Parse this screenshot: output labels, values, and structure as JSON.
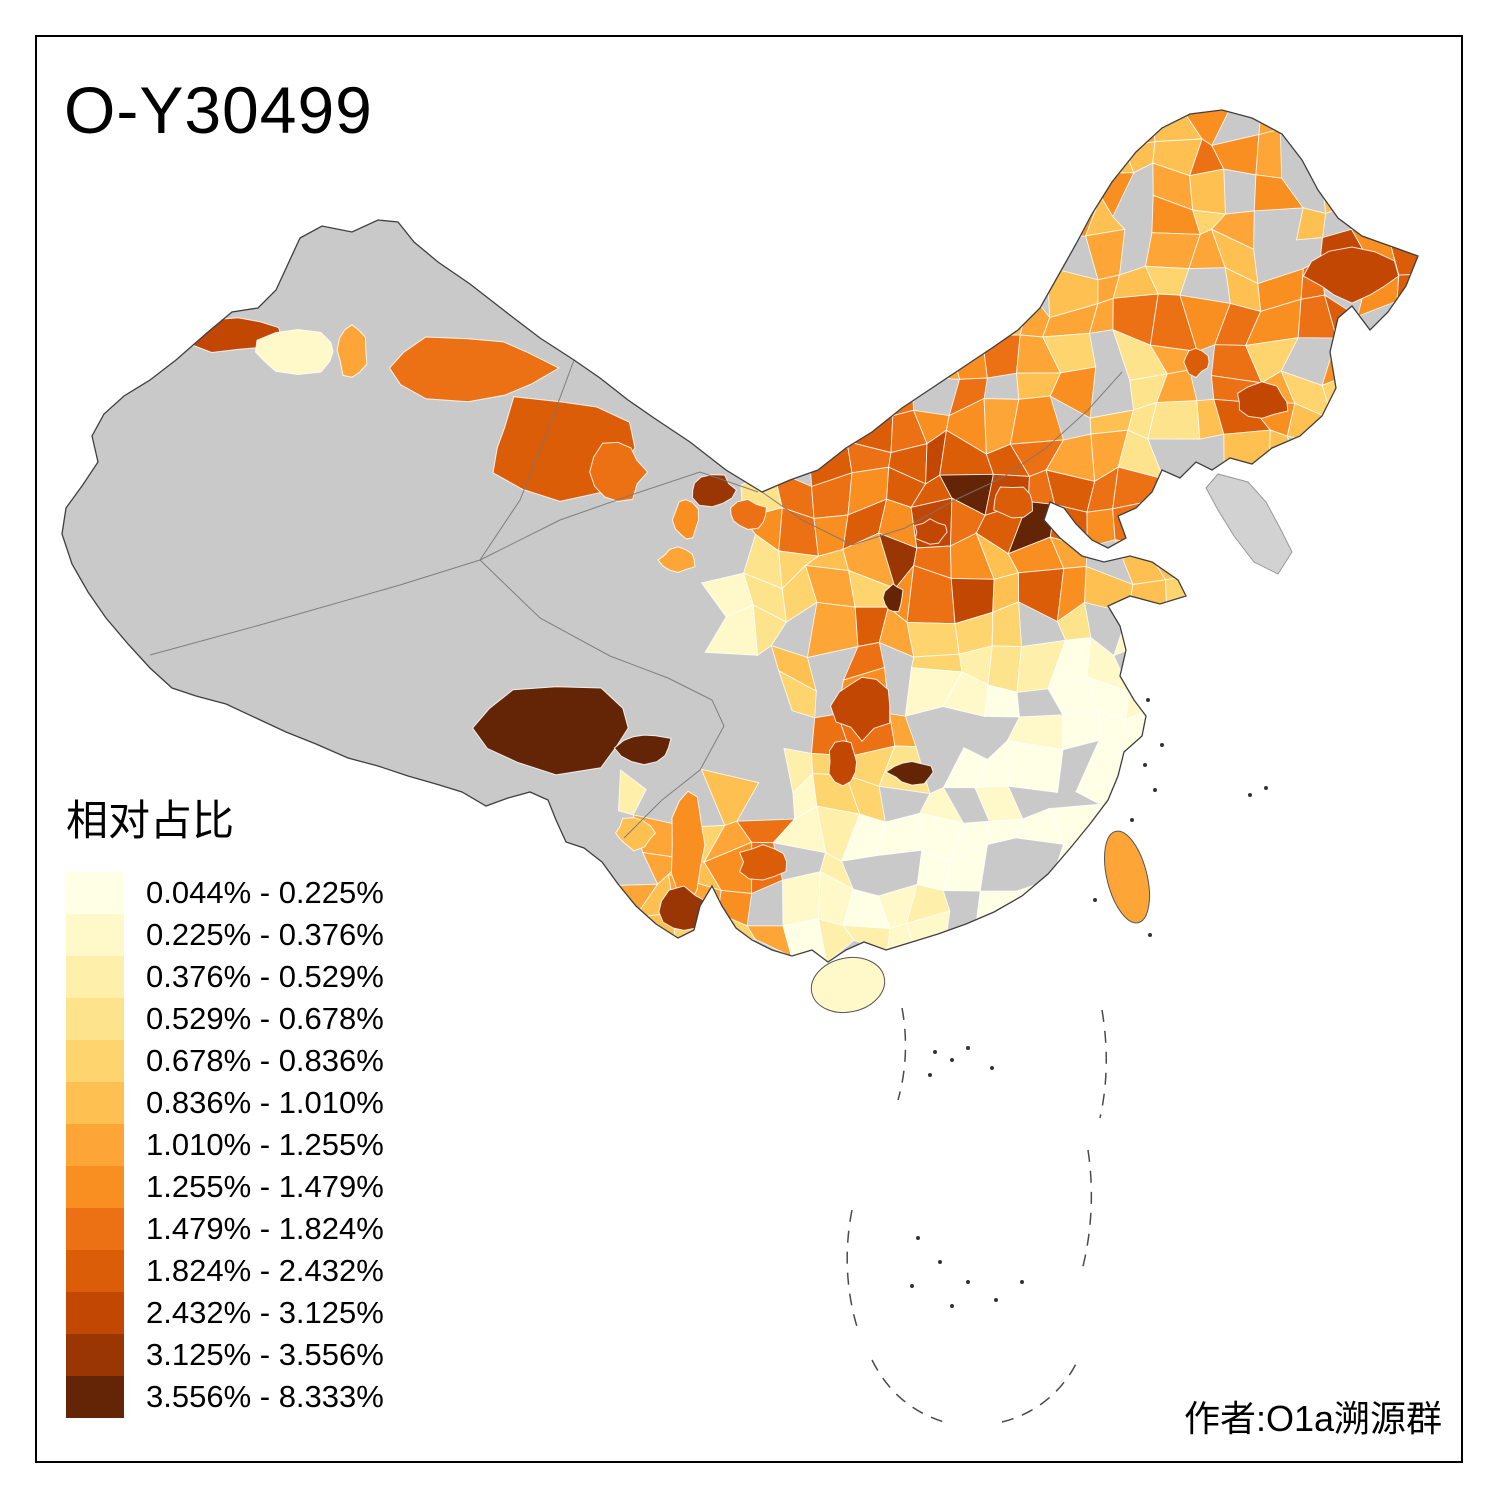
{
  "title": "O-Y30499",
  "attribution": "作者:O1a溯源群",
  "legend": {
    "title": "相对占比",
    "items": [
      {
        "label": "0.044% - 0.225%",
        "color": "#FFFFE5"
      },
      {
        "label": "0.225% - 0.376%",
        "color": "#FFF8C8"
      },
      {
        "label": "0.376% - 0.529%",
        "color": "#FEF0AA"
      },
      {
        "label": "0.529% - 0.678%",
        "color": "#FEE38D"
      },
      {
        "label": "0.678% - 0.836%",
        "color": "#FED46F"
      },
      {
        "label": "0.836% - 1.010%",
        "color": "#FEC051"
      },
      {
        "label": "1.010% - 1.255%",
        "color": "#FDA637"
      },
      {
        "label": "1.255% - 1.479%",
        "color": "#F98E21"
      },
      {
        "label": "1.479% - 1.824%",
        "color": "#EC7014"
      },
      {
        "label": "1.824% - 2.432%",
        "color": "#DC5D08"
      },
      {
        "label": "2.432% - 3.125%",
        "color": "#C24702"
      },
      {
        "label": "3.125% - 3.556%",
        "color": "#9A3504"
      },
      {
        "label": "3.556% - 8.333%",
        "color": "#642506"
      }
    ]
  },
  "map": {
    "no_data_fill": "#C9C9C9",
    "boundary_color": "#3F3F3F",
    "neighbor_fill": "#D2D2D2",
    "sea_feature_color": "#4A4A4A",
    "background": "#FFFFFF"
  }
}
